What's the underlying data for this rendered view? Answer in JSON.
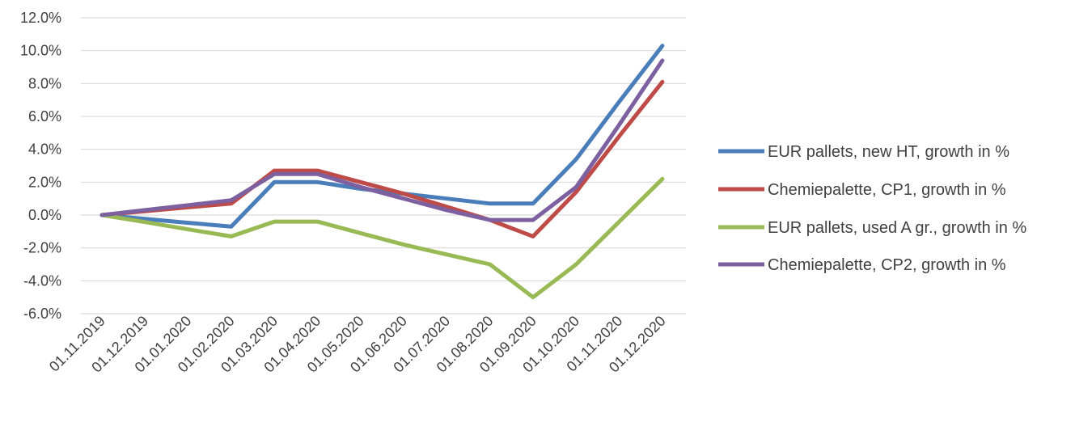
{
  "chart_data": {
    "type": "line",
    "title": "",
    "xlabel": "",
    "ylabel": "",
    "ylim": [
      -6,
      12
    ],
    "y_step": 2,
    "y_tick_labels": [
      "-6.0%",
      "-4.0%",
      "-2.0%",
      "0.0%",
      "2.0%",
      "4.0%",
      "6.0%",
      "8.0%",
      "10.0%",
      "12.0%"
    ],
    "grid": true,
    "legend_position": "right",
    "categories": [
      "01.11.2019",
      "01.12.2019",
      "01.01.2020",
      "01.02.2020",
      "01.03.2020",
      "01.04.2020",
      "01.05.2020",
      "01.06.2020",
      "01.07.2020",
      "01.08.2020",
      "01.09.2020",
      "01.10.2020",
      "01.11.2020",
      "01.12.2020"
    ],
    "series": [
      {
        "name": "EUR pallets, new HT, growth in %",
        "color": "#4a7ebb",
        "values": [
          0.0,
          -0.23,
          -0.47,
          -0.7,
          2.0,
          2.0,
          1.6,
          1.3,
          1.0,
          0.7,
          0.7,
          3.4,
          6.9,
          10.3
        ]
      },
      {
        "name": "Chemiepalette, CP1, growth in %",
        "color": "#be4b48",
        "values": [
          0.0,
          0.23,
          0.47,
          0.7,
          2.7,
          2.7,
          2.0,
          1.3,
          0.5,
          -0.3,
          -1.3,
          1.4,
          4.8,
          8.1
        ]
      },
      {
        "name": "EUR pallets, used A gr., growth in %",
        "color": "#98b954",
        "values": [
          0.0,
          -0.43,
          -0.87,
          -1.3,
          -0.4,
          -0.4,
          -1.1,
          -1.8,
          -2.4,
          -3.0,
          -5.0,
          -3.0,
          -0.4,
          2.2
        ]
      },
      {
        "name": "Chemiepalette, CP2, growth in %",
        "color": "#7d60a0",
        "values": [
          0.0,
          0.3,
          0.6,
          0.9,
          2.5,
          2.5,
          1.7,
          1.0,
          0.3,
          -0.3,
          -0.3,
          1.7,
          5.5,
          9.4
        ]
      }
    ]
  }
}
